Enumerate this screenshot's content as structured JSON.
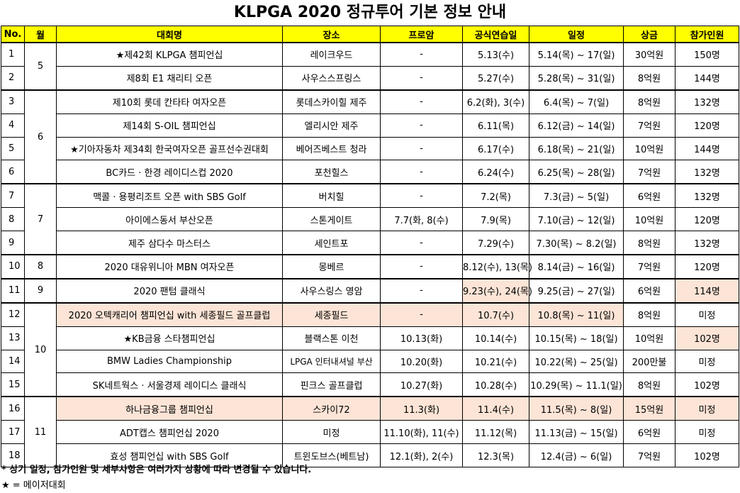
{
  "title": "KLPGA 2020 정규투어 기본 정보 안내",
  "headers": [
    "No.",
    "월",
    "대회명",
    "장소",
    "프로암",
    "공식연습일",
    "일정",
    "상금",
    "참가인원"
  ],
  "rows": [
    {
      "no": "1",
      "tournament": "★제42회 KLPGA 챔피언십",
      "venue": "레이크우드",
      "proam": "-",
      "practice": "5.13(수)",
      "schedule": "5.14(목) ~ 17(일)",
      "prize": "30억원",
      "players": "150명"
    },
    {
      "no": "2",
      "tournament": "제8회 E1 채리티 오픈",
      "venue": "사우스스프링스",
      "proam": "-",
      "practice": "5.27(수)",
      "schedule": "5.28(목) ~ 31(일)",
      "prize": "8억원",
      "players": "144명"
    },
    {
      "no": "3",
      "tournament": "제10회 롯데 칸타타 여자오픈",
      "venue": "롯데스카이힐 제주",
      "proam": "-",
      "practice": "6.2(화), 3(수)",
      "schedule": "6.4(목) ~ 7(일)",
      "prize": "8억원",
      "players": "132명"
    },
    {
      "no": "4",
      "tournament": "제14회 S-OIL 챔피언십",
      "venue": "엘리시안 제주",
      "proam": "-",
      "practice": "6.11(목)",
      "schedule": "6.12(금) ~ 14(일)",
      "prize": "7억원",
      "players": "120명"
    },
    {
      "no": "5",
      "tournament": "★기아자동차 제34회 한국여자오픈 골프선수권대회",
      "venue": "베어즈베스트 청라",
      "proam": "-",
      "practice": "6.17(수)",
      "schedule": "6.18(목) ~ 21(일)",
      "prize": "10억원",
      "players": "144명"
    },
    {
      "no": "6",
      "tournament": "BC카드 · 한경 레이디스컵 2020",
      "venue": "포천힐스",
      "proam": "-",
      "practice": "6.24(수)",
      "schedule": "6.25(목) ~ 28(일)",
      "prize": "7억원",
      "players": "132명"
    },
    {
      "no": "7",
      "tournament": "맥콜 · 용평리조트 오픈 with SBS Golf",
      "venue": "버치힐",
      "proam": "-",
      "practice": "7.2(목)",
      "schedule": "7.3(금) ~ 5(일)",
      "prize": "6억원",
      "players": "132명"
    },
    {
      "no": "8",
      "tournament": "아이에스동서 부산오픈",
      "venue": "스톤게이트",
      "proam": "7.7(화, 8(수)",
      "practice": "7.9(목)",
      "schedule": "7.10(금) ~ 12(일)",
      "prize": "10억원",
      "players": "120명"
    },
    {
      "no": "9",
      "tournament": "제주 삼다수 마스터스",
      "venue": "세인트포",
      "proam": "-",
      "practice": "7.29(수)",
      "schedule": "7.30(목) ~ 8.2(일)",
      "prize": "8억원",
      "players": "132명"
    },
    {
      "no": "10",
      "tournament": "2020 대유위니아 MBN 여자오픈",
      "venue": "몽베르",
      "proam": "-",
      "practice": "8.12(수), 13(목)",
      "schedule": "8.14(금) ~ 16(일)",
      "prize": "7억원",
      "players": "120명"
    },
    {
      "no": "11",
      "tournament": "2020 팬텀 클래식",
      "venue": "사우스링스 영암",
      "proam": "-",
      "practice": "9.23(수), 24(목)",
      "schedule": "9.25(금) ~ 27(일)",
      "prize": "6억원",
      "players": "114명"
    },
    {
      "no": "12",
      "tournament": "2020 오텍캐리어 챔피언십 with 세종필드 골프클럽",
      "venue": "세종필드",
      "proam": "-",
      "practice": "10.7(수)",
      "schedule": "10.8(목) ~ 11(일)",
      "prize": "8억원",
      "players": "미정"
    },
    {
      "no": "13",
      "tournament": "★KB금융 스타챔피언십",
      "venue": "블랙스톤 이천",
      "proam": "10.13(화)",
      "practice": "10.14(수)",
      "schedule": "10.15(목) ~ 18(일)",
      "prize": "10억원",
      "players": "102명"
    },
    {
      "no": "14",
      "tournament": "BMW Ladies Championship",
      "venue": "LPGA 인터내셔널 부산",
      "proam": "10.20(화)",
      "practice": "10.21(수)",
      "schedule": "10.22(목) ~ 25(일)",
      "prize": "200만불",
      "players": "미정"
    },
    {
      "no": "15",
      "tournament": "SK네트웍스 · 서울경제 레이디스 클래식",
      "venue": "핀크스 골프클럽",
      "proam": "10.27(화)",
      "practice": "10.28(수)",
      "schedule": "10.29(목) ~ 11.1(일)",
      "prize": "8억원",
      "players": "102명"
    },
    {
      "no": "16",
      "tournament": "하나금융그룹 챔피언십",
      "venue": "스카이72",
      "proam": "11.3(화)",
      "practice": "11.4(수)",
      "schedule": "11.5(목) ~ 8(일)",
      "prize": "15억원",
      "players": "미정"
    },
    {
      "no": "17",
      "tournament": "ADT캡스 챔피언십 2020",
      "venue": "미정",
      "proam": "11.10(화), 11(수)",
      "practice": "11.12(목)",
      "schedule": "11.13(금) ~ 15(일)",
      "prize": "6억원",
      "players": "미정"
    },
    {
      "no": "18",
      "tournament": "효성 챔피언십 with SBS Golf",
      "venue": "트윈도브스(베트남)",
      "proam": "12.1(화), 2(수)",
      "practice": "12.3(목)",
      "schedule": "12.4(금) ~ 6(일)",
      "prize": "7억원",
      "players": "102명"
    }
  ],
  "months": [
    "5",
    "6",
    "7",
    "8",
    "9",
    "10",
    "11"
  ],
  "footnotes": {
    "note1": "* 상기 일정, 참가인원 및 세부사항은 여러가지 상황에 따라 변경될 수 있습니다.",
    "note2": "★ = 메이저대회"
  },
  "colors": {
    "header_bg": "#ffff00",
    "highlight_bg": "#fce4d6"
  }
}
